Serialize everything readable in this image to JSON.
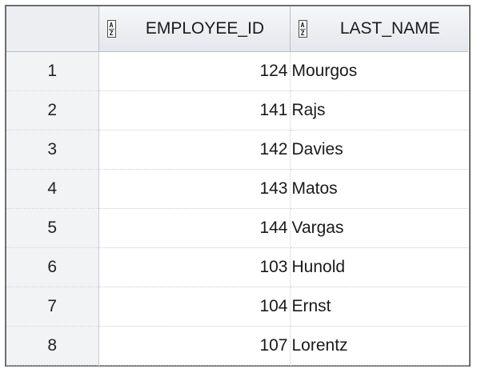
{
  "grid": {
    "columns": [
      {
        "label": "EMPLOYEE_ID"
      },
      {
        "label": "LAST_NAME"
      }
    ],
    "rows": [
      {
        "num": "1",
        "employee_id": "124",
        "last_name": "Mourgos"
      },
      {
        "num": "2",
        "employee_id": "141",
        "last_name": "Rajs"
      },
      {
        "num": "3",
        "employee_id": "142",
        "last_name": "Davies"
      },
      {
        "num": "4",
        "employee_id": "143",
        "last_name": "Matos"
      },
      {
        "num": "5",
        "employee_id": "144",
        "last_name": "Vargas"
      },
      {
        "num": "6",
        "employee_id": "103",
        "last_name": "Hunold"
      },
      {
        "num": "7",
        "employee_id": "104",
        "last_name": "Ernst"
      },
      {
        "num": "8",
        "employee_id": "107",
        "last_name": "Lorentz"
      }
    ]
  },
  "icons": {
    "sort": "sort-az-icon"
  },
  "colors": {
    "header_bg": "#e4e7ec",
    "frame_border": "#6e6e6e",
    "row_number_bg": "#f2f3f5"
  }
}
